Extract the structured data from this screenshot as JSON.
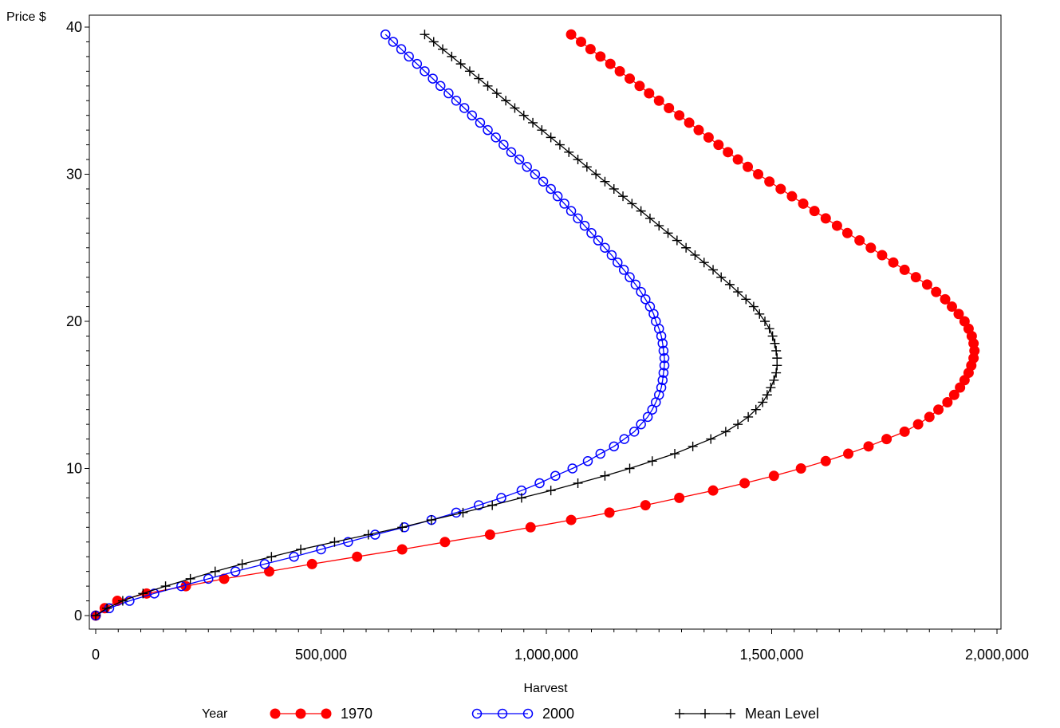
{
  "chart_data": {
    "type": "line",
    "title": "",
    "xlabel": "Harvest",
    "ylabel": "Price $",
    "xlim": [
      0,
      2000000
    ],
    "ylim": [
      0,
      40
    ],
    "x_ticks": [
      0,
      500000,
      1000000,
      1500000,
      2000000
    ],
    "x_tick_labels": [
      "0",
      "500,000",
      "1,000,000",
      "1,500,000",
      "2,000,000"
    ],
    "y_ticks": [
      0,
      10,
      20,
      30,
      40
    ],
    "y_tick_labels": [
      "0",
      "10",
      "20",
      "30",
      "40"
    ],
    "grid": false,
    "legend": {
      "title": "Year",
      "position": "bottom"
    },
    "series": [
      {
        "name": "1970",
        "color": "#ff0000",
        "marker": "filled-circle",
        "points": [
          [
            0,
            0
          ],
          [
            20000,
            0.5
          ],
          [
            48000,
            1
          ],
          [
            113000,
            1.5
          ],
          [
            200000,
            2
          ],
          [
            285000,
            2.5
          ],
          [
            385000,
            3
          ],
          [
            480000,
            3.5
          ],
          [
            580000,
            4
          ],
          [
            680000,
            4.5
          ],
          [
            775000,
            5
          ],
          [
            875000,
            5.5
          ],
          [
            965000,
            6
          ],
          [
            1055000,
            6.5
          ],
          [
            1140000,
            7
          ],
          [
            1220000,
            7.5
          ],
          [
            1295000,
            8
          ],
          [
            1370000,
            8.5
          ],
          [
            1440000,
            9
          ],
          [
            1505000,
            9.5
          ],
          [
            1565000,
            10
          ],
          [
            1620000,
            10.5
          ],
          [
            1670000,
            11
          ],
          [
            1715000,
            11.5
          ],
          [
            1755000,
            12
          ],
          [
            1795000,
            12.5
          ],
          [
            1825000,
            13
          ],
          [
            1850000,
            13.5
          ],
          [
            1870000,
            14
          ],
          [
            1890000,
            14.5
          ],
          [
            1905000,
            15
          ],
          [
            1918000,
            15.5
          ],
          [
            1928000,
            16
          ],
          [
            1937000,
            16.5
          ],
          [
            1943000,
            17
          ],
          [
            1948000,
            17.5
          ],
          [
            1950000,
            18
          ],
          [
            1948000,
            18.5
          ],
          [
            1944000,
            19
          ],
          [
            1937000,
            19.5
          ],
          [
            1928000,
            20
          ],
          [
            1915000,
            20.5
          ],
          [
            1900000,
            21
          ],
          [
            1885000,
            21.5
          ],
          [
            1865000,
            22
          ],
          [
            1845000,
            22.5
          ],
          [
            1820000,
            23
          ],
          [
            1795000,
            23.5
          ],
          [
            1770000,
            24
          ],
          [
            1745000,
            24.5
          ],
          [
            1720000,
            25
          ],
          [
            1695000,
            25.5
          ],
          [
            1668000,
            26
          ],
          [
            1645000,
            26.5
          ],
          [
            1620000,
            27
          ],
          [
            1595000,
            27.5
          ],
          [
            1570000,
            28
          ],
          [
            1545000,
            28.5
          ],
          [
            1520000,
            29
          ],
          [
            1495000,
            29.5
          ],
          [
            1470000,
            30
          ],
          [
            1447000,
            30.5
          ],
          [
            1425000,
            31
          ],
          [
            1403000,
            31.5
          ],
          [
            1382000,
            32
          ],
          [
            1360000,
            32.5
          ],
          [
            1338000,
            33
          ],
          [
            1317000,
            33.5
          ],
          [
            1295000,
            34
          ],
          [
            1272000,
            34.5
          ],
          [
            1250000,
            35
          ],
          [
            1228000,
            35.5
          ],
          [
            1207000,
            36
          ],
          [
            1185000,
            36.5
          ],
          [
            1163000,
            37
          ],
          [
            1142000,
            37.5
          ],
          [
            1120000,
            38
          ],
          [
            1098000,
            38.5
          ],
          [
            1077000,
            39
          ],
          [
            1055000,
            39.5
          ]
        ]
      },
      {
        "name": "2000",
        "color": "#0000ff",
        "marker": "open-circle",
        "points": [
          [
            0,
            0
          ],
          [
            30000,
            0.5
          ],
          [
            75000,
            1
          ],
          [
            130000,
            1.5
          ],
          [
            190000,
            2
          ],
          [
            250000,
            2.5
          ],
          [
            310000,
            3
          ],
          [
            375000,
            3.5
          ],
          [
            440000,
            4
          ],
          [
            500000,
            4.5
          ],
          [
            560000,
            5
          ],
          [
            620000,
            5.5
          ],
          [
            685000,
            6
          ],
          [
            745000,
            6.5
          ],
          [
            800000,
            7
          ],
          [
            850000,
            7.5
          ],
          [
            900000,
            8
          ],
          [
            945000,
            8.5
          ],
          [
            985000,
            9
          ],
          [
            1020000,
            9.5
          ],
          [
            1058000,
            10
          ],
          [
            1092000,
            10.5
          ],
          [
            1120000,
            11
          ],
          [
            1150000,
            11.5
          ],
          [
            1173000,
            12
          ],
          [
            1195000,
            12.5
          ],
          [
            1210000,
            13
          ],
          [
            1225000,
            13.5
          ],
          [
            1235000,
            14
          ],
          [
            1243000,
            14.5
          ],
          [
            1250000,
            15
          ],
          [
            1255000,
            15.5
          ],
          [
            1258000,
            16
          ],
          [
            1260000,
            16.5
          ],
          [
            1262000,
            17
          ],
          [
            1262000,
            17.5
          ],
          [
            1260000,
            18
          ],
          [
            1258000,
            18.5
          ],
          [
            1255000,
            19
          ],
          [
            1250000,
            19.5
          ],
          [
            1243000,
            20
          ],
          [
            1238000,
            20.5
          ],
          [
            1230000,
            21
          ],
          [
            1220000,
            21.5
          ],
          [
            1210000,
            22
          ],
          [
            1198000,
            22.5
          ],
          [
            1185000,
            23
          ],
          [
            1172000,
            23.5
          ],
          [
            1158000,
            24
          ],
          [
            1145000,
            24.5
          ],
          [
            1130000,
            25
          ],
          [
            1115000,
            25.5
          ],
          [
            1100000,
            26
          ],
          [
            1085000,
            26.5
          ],
          [
            1070000,
            27
          ],
          [
            1055000,
            27.5
          ],
          [
            1040000,
            28
          ],
          [
            1025000,
            28.5
          ],
          [
            1010000,
            29
          ],
          [
            993000,
            29.5
          ],
          [
            975000,
            30
          ],
          [
            957000,
            30.5
          ],
          [
            940000,
            31
          ],
          [
            922000,
            31.5
          ],
          [
            905000,
            32
          ],
          [
            888000,
            32.5
          ],
          [
            870000,
            33
          ],
          [
            853000,
            33.5
          ],
          [
            835000,
            34
          ],
          [
            818000,
            34.5
          ],
          [
            800000,
            35
          ],
          [
            783000,
            35.5
          ],
          [
            765000,
            36
          ],
          [
            748000,
            36.5
          ],
          [
            730000,
            37
          ],
          [
            713000,
            37.5
          ],
          [
            695000,
            38
          ],
          [
            678000,
            38.5
          ],
          [
            660000,
            39
          ],
          [
            643000,
            39.5
          ]
        ]
      },
      {
        "name": "Mean Level",
        "color": "#000000",
        "marker": "plus",
        "points": [
          [
            0,
            0
          ],
          [
            25000,
            0.5
          ],
          [
            60000,
            1
          ],
          [
            105000,
            1.5
          ],
          [
            155000,
            2
          ],
          [
            210000,
            2.5
          ],
          [
            265000,
            3
          ],
          [
            325000,
            3.5
          ],
          [
            390000,
            4
          ],
          [
            455000,
            4.5
          ],
          [
            530000,
            5
          ],
          [
            605000,
            5.5
          ],
          [
            680000,
            6
          ],
          [
            745000,
            6.5
          ],
          [
            815000,
            7
          ],
          [
            880000,
            7.5
          ],
          [
            945000,
            8
          ],
          [
            1010000,
            8.5
          ],
          [
            1070000,
            9
          ],
          [
            1130000,
            9.5
          ],
          [
            1185000,
            10
          ],
          [
            1235000,
            10.5
          ],
          [
            1285000,
            11
          ],
          [
            1325000,
            11.5
          ],
          [
            1365000,
            12
          ],
          [
            1398000,
            12.5
          ],
          [
            1425000,
            13
          ],
          [
            1448000,
            13.5
          ],
          [
            1465000,
            14
          ],
          [
            1480000,
            14.5
          ],
          [
            1490000,
            15
          ],
          [
            1498000,
            15.5
          ],
          [
            1505000,
            16
          ],
          [
            1510000,
            16.5
          ],
          [
            1512000,
            17
          ],
          [
            1512000,
            17.5
          ],
          [
            1510000,
            18
          ],
          [
            1507000,
            18.5
          ],
          [
            1502000,
            19
          ],
          [
            1495000,
            19.5
          ],
          [
            1485000,
            20
          ],
          [
            1473000,
            20.5
          ],
          [
            1460000,
            21
          ],
          [
            1443000,
            21.5
          ],
          [
            1425000,
            22
          ],
          [
            1407000,
            22.5
          ],
          [
            1388000,
            23
          ],
          [
            1370000,
            23.5
          ],
          [
            1350000,
            24
          ],
          [
            1330000,
            24.5
          ],
          [
            1310000,
            25
          ],
          [
            1290000,
            25.5
          ],
          [
            1270000,
            26
          ],
          [
            1250000,
            26.5
          ],
          [
            1230000,
            27
          ],
          [
            1210000,
            27.5
          ],
          [
            1190000,
            28
          ],
          [
            1170000,
            28.5
          ],
          [
            1150000,
            29
          ],
          [
            1130000,
            29.5
          ],
          [
            1110000,
            30
          ],
          [
            1090000,
            30.5
          ],
          [
            1070000,
            31
          ],
          [
            1050000,
            31.5
          ],
          [
            1030000,
            32
          ],
          [
            1010000,
            32.5
          ],
          [
            990000,
            33
          ],
          [
            970000,
            33.5
          ],
          [
            950000,
            34
          ],
          [
            930000,
            34.5
          ],
          [
            910000,
            35
          ],
          [
            890000,
            35.5
          ],
          [
            870000,
            36
          ],
          [
            850000,
            36.5
          ],
          [
            830000,
            37
          ],
          [
            810000,
            37.5
          ],
          [
            790000,
            38
          ],
          [
            770000,
            38.5
          ],
          [
            750000,
            39
          ],
          [
            730000,
            39.5
          ]
        ]
      }
    ]
  }
}
